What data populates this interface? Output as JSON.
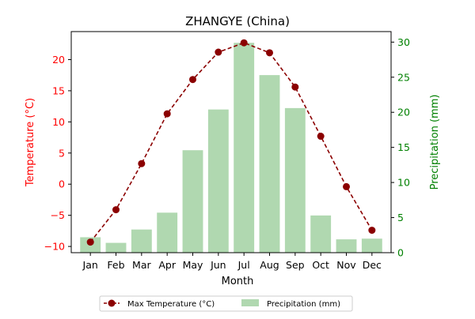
{
  "chart_data": {
    "type": "bar+line",
    "title": "ZHANGYE (China)",
    "xlabel": "Month",
    "categories": [
      "Jan",
      "Feb",
      "Mar",
      "Apr",
      "May",
      "Jun",
      "Jul",
      "Aug",
      "Sep",
      "Oct",
      "Nov",
      "Dec"
    ],
    "left_axis": {
      "label": "Temperature (°C)",
      "ylim": [
        -11,
        24.5
      ],
      "ticks": [
        -10,
        -5,
        0,
        5,
        10,
        15,
        20
      ],
      "color": "#ff0000"
    },
    "right_axis": {
      "label": "Precipitation (mm)",
      "ylim": [
        0,
        31.5
      ],
      "ticks": [
        0,
        5,
        10,
        15,
        20,
        25,
        30
      ],
      "color": "#008000"
    },
    "series": [
      {
        "name": "Max Temperature (°C)",
        "kind": "line",
        "axis": "left",
        "color": "#8b0000",
        "style": "dashed with circle markers",
        "values": [
          -9.3,
          -4.1,
          3.3,
          11.3,
          16.8,
          21.2,
          22.7,
          21.1,
          15.6,
          7.7,
          -0.4,
          -7.4
        ]
      },
      {
        "name": "Precipitation (mm)",
        "kind": "bar",
        "axis": "right",
        "color": "#b0d8b0",
        "values": [
          2.2,
          1.4,
          3.3,
          5.7,
          14.6,
          20.4,
          29.9,
          25.3,
          20.6,
          5.3,
          1.9,
          2.0
        ]
      }
    ],
    "legend": {
      "placement": "bottom-center",
      "entries": [
        "Max Temperature (°C)",
        "Precipitation (mm)"
      ]
    },
    "grid": false
  }
}
